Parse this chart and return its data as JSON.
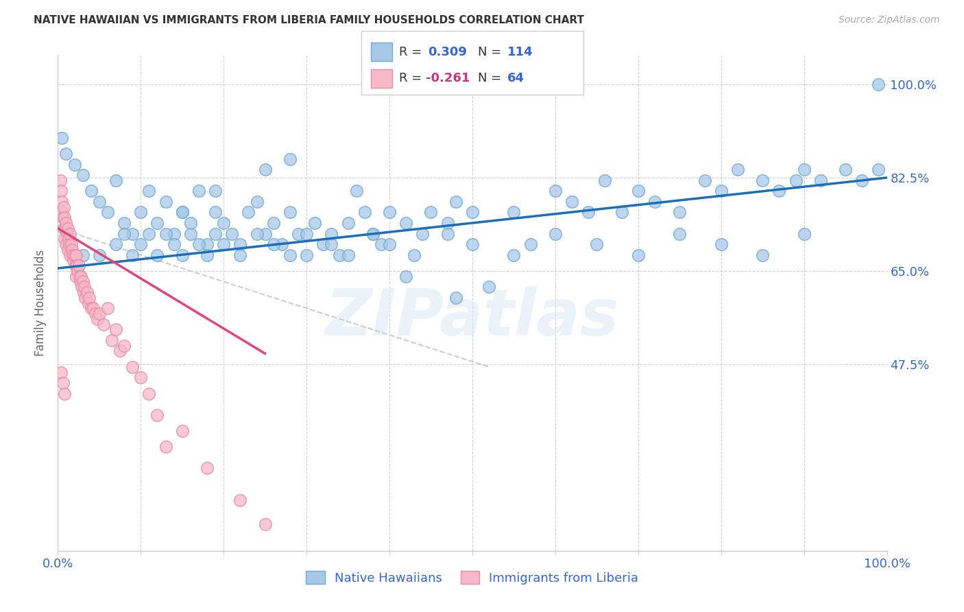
{
  "title": "NATIVE HAWAIIAN VS IMMIGRANTS FROM LIBERIA FAMILY HOUSEHOLDS CORRELATION CHART",
  "source": "Source: ZipAtlas.com",
  "ylabel": "Family Households",
  "watermark": "ZIPatlas",
  "blue_color": "#a8c8e8",
  "blue_edge": "#6aaad4",
  "pink_color": "#f8b8c8",
  "pink_edge": "#e88aaa",
  "line_blue": "#1a6fbd",
  "line_pink": "#e0457b",
  "line_dashed": "#cccccc",
  "ytick_values": [
    1.0,
    0.825,
    0.65,
    0.475
  ],
  "ytick_labels": [
    "100.0%",
    "82.5%",
    "65.0%",
    "47.5%"
  ],
  "blue_line_x": [
    0.0,
    1.0
  ],
  "blue_line_y": [
    0.655,
    0.825
  ],
  "pink_line_x": [
    0.0,
    0.25
  ],
  "pink_line_y": [
    0.73,
    0.495
  ],
  "dashed_line_x": [
    0.0,
    0.52
  ],
  "dashed_line_y": [
    0.73,
    0.47
  ],
  "xlim": [
    0.0,
    1.0
  ],
  "ylim": [
    0.125,
    1.055
  ],
  "grid_color": "#d0d0d0",
  "background_color": "#ffffff",
  "label_color": "#3366cc",
  "r_value_color_blue": "#3366cc",
  "r_value_color_pink": "#cc3377",
  "blue_scatter_x": [
    0.005,
    0.01,
    0.02,
    0.03,
    0.04,
    0.05,
    0.06,
    0.07,
    0.08,
    0.09,
    0.1,
    0.11,
    0.12,
    0.13,
    0.14,
    0.15,
    0.16,
    0.17,
    0.18,
    0.19,
    0.2,
    0.21,
    0.22,
    0.23,
    0.24,
    0.25,
    0.26,
    0.27,
    0.28,
    0.29,
    0.3,
    0.31,
    0.32,
    0.33,
    0.34,
    0.35,
    0.37,
    0.38,
    0.39,
    0.4,
    0.42,
    0.44,
    0.45,
    0.47,
    0.48,
    0.5,
    0.52,
    0.55,
    0.57,
    0.6,
    0.62,
    0.64,
    0.66,
    0.68,
    0.7,
    0.72,
    0.75,
    0.78,
    0.8,
    0.82,
    0.85,
    0.87,
    0.89,
    0.9,
    0.92,
    0.95,
    0.97,
    0.99,
    0.03,
    0.05,
    0.07,
    0.08,
    0.09,
    0.1,
    0.11,
    0.12,
    0.13,
    0.14,
    0.15,
    0.16,
    0.17,
    0.18,
    0.19,
    0.2,
    0.22,
    0.24,
    0.26,
    0.28,
    0.3,
    0.33,
    0.35,
    0.38,
    0.4,
    0.43,
    0.47,
    0.5,
    0.55,
    0.6,
    0.65,
    0.7,
    0.75,
    0.8,
    0.85,
    0.9,
    0.99,
    0.48,
    0.36,
    0.42,
    0.28,
    0.19,
    0.25,
    0.15
  ],
  "blue_scatter_y": [
    0.9,
    0.87,
    0.85,
    0.83,
    0.8,
    0.78,
    0.76,
    0.82,
    0.74,
    0.72,
    0.76,
    0.8,
    0.74,
    0.78,
    0.72,
    0.76,
    0.74,
    0.8,
    0.7,
    0.76,
    0.74,
    0.72,
    0.7,
    0.76,
    0.78,
    0.72,
    0.74,
    0.7,
    0.76,
    0.72,
    0.68,
    0.74,
    0.7,
    0.72,
    0.68,
    0.74,
    0.76,
    0.72,
    0.7,
    0.76,
    0.74,
    0.72,
    0.76,
    0.74,
    0.78,
    0.76,
    0.62,
    0.76,
    0.7,
    0.8,
    0.78,
    0.76,
    0.82,
    0.76,
    0.8,
    0.78,
    0.76,
    0.82,
    0.8,
    0.84,
    0.82,
    0.8,
    0.82,
    0.84,
    0.82,
    0.84,
    0.82,
    1.0,
    0.68,
    0.68,
    0.7,
    0.72,
    0.68,
    0.7,
    0.72,
    0.68,
    0.72,
    0.7,
    0.68,
    0.72,
    0.7,
    0.68,
    0.72,
    0.7,
    0.68,
    0.72,
    0.7,
    0.68,
    0.72,
    0.7,
    0.68,
    0.72,
    0.7,
    0.68,
    0.72,
    0.7,
    0.68,
    0.72,
    0.7,
    0.68,
    0.72,
    0.7,
    0.68,
    0.72,
    0.84,
    0.6,
    0.8,
    0.64,
    0.86,
    0.8,
    0.84,
    0.76
  ],
  "pink_scatter_x": [
    0.003,
    0.004,
    0.005,
    0.005,
    0.006,
    0.007,
    0.007,
    0.008,
    0.008,
    0.009,
    0.01,
    0.01,
    0.011,
    0.012,
    0.012,
    0.013,
    0.014,
    0.015,
    0.015,
    0.016,
    0.017,
    0.018,
    0.019,
    0.02,
    0.021,
    0.022,
    0.022,
    0.023,
    0.024,
    0.025,
    0.026,
    0.027,
    0.028,
    0.029,
    0.03,
    0.031,
    0.032,
    0.033,
    0.035,
    0.037,
    0.038,
    0.04,
    0.043,
    0.045,
    0.048,
    0.05,
    0.055,
    0.06,
    0.065,
    0.07,
    0.075,
    0.08,
    0.09,
    0.1,
    0.11,
    0.12,
    0.13,
    0.15,
    0.18,
    0.22,
    0.25,
    0.004,
    0.006,
    0.008
  ],
  "pink_scatter_y": [
    0.82,
    0.8,
    0.78,
    0.76,
    0.75,
    0.77,
    0.73,
    0.75,
    0.71,
    0.73,
    0.74,
    0.7,
    0.72,
    0.73,
    0.69,
    0.71,
    0.7,
    0.72,
    0.68,
    0.7,
    0.69,
    0.68,
    0.67,
    0.68,
    0.66,
    0.68,
    0.64,
    0.66,
    0.65,
    0.66,
    0.64,
    0.63,
    0.64,
    0.62,
    0.63,
    0.61,
    0.62,
    0.6,
    0.61,
    0.59,
    0.6,
    0.58,
    0.58,
    0.57,
    0.56,
    0.57,
    0.55,
    0.58,
    0.52,
    0.54,
    0.5,
    0.51,
    0.47,
    0.45,
    0.42,
    0.38,
    0.32,
    0.35,
    0.28,
    0.22,
    0.175,
    0.46,
    0.44,
    0.42
  ]
}
